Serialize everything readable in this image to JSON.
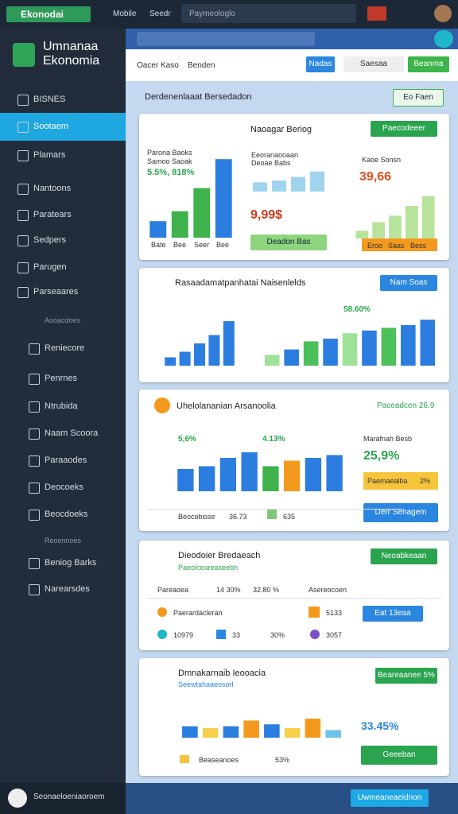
{
  "topbar": {
    "app": "Ekonodai",
    "tabs": [
      "Mobile",
      "Seedr"
    ],
    "search": "Paymeologlo"
  },
  "sidebar": {
    "brand": "Umnanaa Ekonomia",
    "active": 1,
    "items": [
      "BISNES",
      "Sootaem",
      "Plamars",
      "Nantoons",
      "Paratears",
      "Sedpers",
      "Parugen",
      "Parseaares",
      "Reniecore",
      "Penrnes",
      "Ntrubida",
      "Naam Scoora",
      "Paraaodes",
      "Deocoeks",
      "Beocdoeks",
      "Beniog Barks",
      "Narearsdes"
    ],
    "sections": [
      "Aooacdoes",
      "Reoennoes"
    ],
    "footer": "Seonaeloeniaoroem"
  },
  "header": {
    "breadcrumb": [
      "Oacer Kaso",
      "Benden"
    ],
    "buttons": [
      "Nadas",
      "Saesaa",
      "Beanma"
    ],
    "title": "Derdenenlaaat Bersedadon",
    "action": "Eo Faen"
  },
  "card1": {
    "title": "Naoagar Beriog",
    "button": "Paecodeeer",
    "left_label": "Parona Baoks",
    "left_sub": "Samoo Saoak",
    "left_value": "5.5%, 818%",
    "mid_label": "Eeoranaooaan",
    "mid_sub": "Deoae Babs",
    "mid_value": "9,99$",
    "mid_button": "Deadon Bas",
    "right_label": "Kaoe Sonsn",
    "right_value": "39,66",
    "x_labels": [
      "Bate",
      "Bee",
      "Seer",
      "Bee"
    ],
    "right_x": [
      "Eroo",
      "Saas",
      "Bess"
    ]
  },
  "card2": {
    "title": "Rasaadamatpanhatai Naisenlelds",
    "button": "Nam Soas",
    "value": "58.60%"
  },
  "card3": {
    "title": "Uhelolananian Arsanoolia",
    "tag": "Paceadcen 26.9",
    "v1": "5,6%",
    "v2": "4.13%",
    "side_label": "Marafnah Besb",
    "side_value": "25,9%",
    "bar_label": "Paemaealba",
    "bar_value": "2%",
    "button": "Derr Sehagem",
    "legend": "Beocobisse",
    "legend_v1": "36.73",
    "legend_v2": "635"
  },
  "card4": {
    "title": "Dieodoier Bredaeach",
    "subtitle": "Paeolceareaseebh",
    "button": "Neoabkeaan",
    "row1": [
      "Pareaoea",
      "14 30%",
      "32.80 %",
      "Asereocoen"
    ],
    "row2": [
      "Paerardacleran",
      "5133"
    ],
    "button2": "Eat 13eaa",
    "row3": [
      "10979",
      "33",
      "30%",
      "3057"
    ]
  },
  "card5": {
    "title": "Dmnakarnaib Ieooacia",
    "subtitle": "Seewtahaaeosorl",
    "button": "Beareaanee 5%",
    "value": "33.45%",
    "button2": "Geeeban",
    "legend": "Beaseanoes",
    "legend_v": "53%"
  },
  "footer": {
    "button": "Uwmeaneaeidnon"
  },
  "charts": [
    {
      "ylim": [
        0,
        100
      ],
      "values": [
        20,
        32,
        60,
        95
      ],
      "colors": [
        "#2b7de0",
        "#3fb24c",
        "#3fb24c",
        "#2b7de0"
      ]
    },
    {
      "ylim": [
        0,
        100
      ],
      "values": [
        25,
        30,
        40,
        55
      ],
      "colors": [
        "#9fd3ee",
        "#9fd3ee",
        "#9fd3ee",
        "#9fd3ee"
      ]
    },
    {
      "ylim": [
        0,
        100
      ],
      "values": [
        12,
        25,
        35,
        50,
        65
      ],
      "colors": [
        "#b7e39b",
        "#b7e39b",
        "#b7e39b",
        "#b7e39b",
        "#b7e39b"
      ]
    },
    {
      "ylim": [
        0,
        100
      ],
      "values": [
        15,
        25,
        40,
        55,
        80
      ],
      "colors": [
        "#2b7de0",
        "#2b7de0",
        "#2b7de0",
        "#2b7de0",
        "#2b7de0"
      ]
    },
    {
      "ylim": [
        0,
        100
      ],
      "values": [
        20,
        30,
        45,
        50,
        60,
        65,
        70,
        75,
        85
      ],
      "colors": [
        "#9ee29a",
        "#2b7de0",
        "#4cc05a",
        "#2b7de0",
        "#9ee29a",
        "#2b7de0",
        "#4cc05a",
        "#2b7de0",
        "#2b7de0"
      ]
    },
    {
      "ylim": [
        0,
        100
      ],
      "values": [
        40,
        45,
        60,
        70,
        45,
        55,
        60,
        65
      ],
      "colors": [
        "#2b7de0",
        "#2b7de0",
        "#2b7de0",
        "#2b7de0",
        "#3fb24c",
        "#f39a1e",
        "#2b7de0",
        "#2b7de0"
      ]
    },
    {
      "ylim": [
        0,
        100
      ],
      "values": [
        30,
        25,
        30,
        45,
        35,
        25,
        50,
        20
      ],
      "colors": [
        "#2b7de0",
        "#f6cf4b",
        "#2b7de0",
        "#f39a1e",
        "#2b7de0",
        "#f6cf4b",
        "#f39a1e",
        "#6fc2e8"
      ]
    }
  ]
}
